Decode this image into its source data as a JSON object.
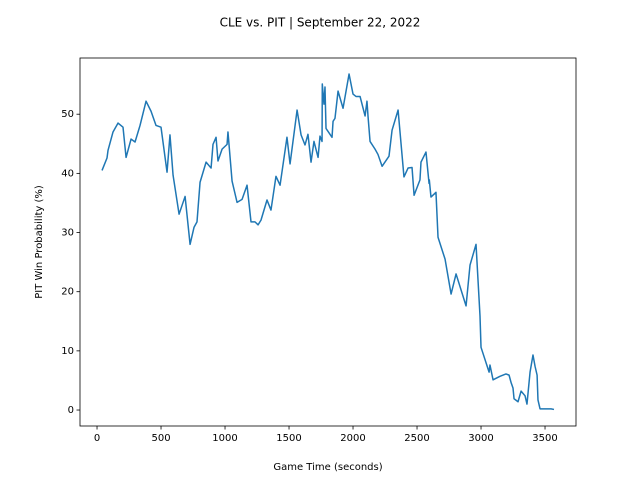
{
  "chart_data": {
    "type": "line",
    "title": "CLE vs. PIT | September 22, 2022",
    "x_label": "Game Time (seconds)",
    "y_label": "PIT Win Probability (%)",
    "xlim": [
      -133,
      3742
    ],
    "ylim": [
      -2.7,
      59.5
    ],
    "xticks": [
      0,
      500,
      1000,
      1500,
      2000,
      2500,
      3000,
      3500
    ],
    "yticks": [
      0,
      10,
      20,
      30,
      40,
      50
    ],
    "grid": false,
    "series": [
      {
        "name": "PIT",
        "color": "#1f77b4",
        "x": [
          39,
          78,
          86,
          125,
          164,
          203,
          227,
          266,
          297,
          336,
          383,
          422,
          461,
          500,
          547,
          570,
          594,
          641,
          688,
          727,
          758,
          781,
          805,
          852,
          891,
          906,
          930,
          945,
          977,
          1016,
          1023,
          1055,
          1094,
          1133,
          1172,
          1203,
          1234,
          1258,
          1281,
          1328,
          1359,
          1398,
          1430,
          1484,
          1508,
          1563,
          1594,
          1625,
          1648,
          1672,
          1695,
          1727,
          1742,
          1758,
          1760,
          1773,
          1781,
          1789,
          1836,
          1844,
          1859,
          1883,
          1922,
          1969,
          2000,
          2023,
          2055,
          2094,
          2109,
          2117,
          2133,
          2172,
          2195,
          2227,
          2281,
          2305,
          2352,
          2398,
          2430,
          2461,
          2477,
          2523,
          2531,
          2570,
          2594,
          2596,
          2609,
          2648,
          2664,
          2719,
          2766,
          2805,
          2883,
          2914,
          2961,
          2992,
          3000,
          3063,
          3070,
          3094,
          3148,
          3195,
          3219,
          3234,
          3250,
          3258,
          3289,
          3313,
          3344,
          3359,
          3383,
          3406,
          3422,
          3438,
          3445,
          3461,
          3508,
          3547,
          3570
        ],
        "values": [
          40.5,
          42.6,
          43.9,
          47,
          48.5,
          47.8,
          42.7,
          45.8,
          45.3,
          48.1,
          52.2,
          50.5,
          48.1,
          47.8,
          40.2,
          46.5,
          39.7,
          33.1,
          36.1,
          28,
          30.9,
          31.8,
          38.5,
          41.9,
          40.9,
          44.9,
          46.1,
          42.1,
          44.1,
          44.9,
          47,
          38.7,
          35.1,
          35.6,
          38,
          31.8,
          31.8,
          31.3,
          32.1,
          35.5,
          33.8,
          39.5,
          38,
          46.1,
          41.6,
          50.7,
          46.5,
          44.8,
          46.6,
          41.9,
          45.4,
          42.7,
          46.3,
          45.4,
          55.1,
          51.7,
          54.6,
          47.6,
          46.1,
          48.8,
          49.3,
          53.9,
          51,
          56.8,
          53.4,
          53,
          53,
          49.7,
          52.2,
          49.7,
          45.4,
          44.1,
          43.2,
          41.2,
          42.9,
          47.3,
          50.7,
          39.4,
          40.9,
          41,
          36.3,
          38.9,
          41.9,
          43.6,
          38.3,
          38.9,
          36,
          36.8,
          29.2,
          25.5,
          19.6,
          23,
          17.6,
          24.5,
          28,
          15.9,
          10.6,
          6.4,
          7.6,
          5.1,
          5.7,
          6.1,
          5.9,
          4.7,
          3.7,
          1.9,
          1.4,
          3.2,
          2.4,
          1,
          6.4,
          9.3,
          7.4,
          5.9,
          1.7,
          0.2,
          0.2,
          0.2,
          0.1
        ]
      }
    ]
  }
}
